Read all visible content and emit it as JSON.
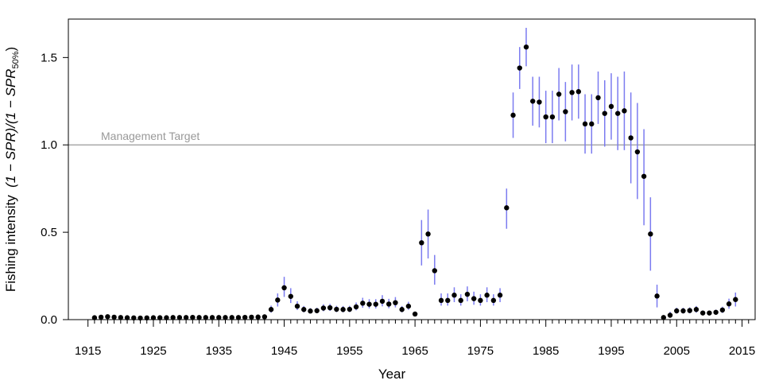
{
  "chart_data": {
    "type": "scatter",
    "title": "",
    "xlabel": "Year",
    "ylabel": {
      "prefix": "Fishing intensity  ",
      "expression": "(1 − SPR)/(1 − SPR",
      "subscript": "50%",
      "suffix": ")"
    },
    "xlim": [
      1912,
      2017
    ],
    "ylim": [
      0,
      1.72
    ],
    "x_ticks": [
      1915,
      1925,
      1935,
      1945,
      1955,
      1965,
      1975,
      1985,
      1995,
      2005,
      2015
    ],
    "x_minor_ticks": [
      1916,
      1917,
      1918,
      1919,
      1920,
      1921,
      1922,
      1923,
      1924,
      1926,
      1927,
      1928,
      1929,
      1930,
      1931,
      1932,
      1933,
      1934,
      1936,
      1937,
      1938,
      1939,
      1940,
      1941,
      1942,
      1943,
      1944,
      1946,
      1947,
      1948,
      1949,
      1950,
      1951,
      1952,
      1953,
      1954,
      1956,
      1957,
      1958,
      1959,
      1960,
      1961,
      1962,
      1963,
      1964,
      1966,
      1967,
      1968,
      1969,
      1970,
      1971,
      1972,
      1973,
      1974,
      1976,
      1977,
      1978,
      1979,
      1980,
      1981,
      1982,
      1983,
      1984,
      1986,
      1987,
      1988,
      1989,
      1990,
      1991,
      1992,
      1993,
      1994,
      1996,
      1997,
      1998,
      1999,
      2000,
      2001,
      2002,
      2003,
      2004,
      2006,
      2007,
      2008,
      2009,
      2010,
      2011,
      2012,
      2013,
      2014,
      2016
    ],
    "y_ticks": [
      0.0,
      0.5,
      1.0,
      1.5
    ],
    "y_tick_labels": [
      "0.0",
      "0.5",
      "1.0",
      "1.5"
    ],
    "grid": false,
    "reference_line": {
      "y": 1.0,
      "label": "Management Target",
      "color": "#999999"
    },
    "colors": {
      "point": "#000000",
      "interval": "#7b7bf0",
      "axis": "#000000"
    },
    "series": [
      {
        "x": [
          1916,
          1917,
          1918,
          1919,
          1920,
          1921,
          1922,
          1923,
          1924,
          1925,
          1926,
          1927,
          1928,
          1929,
          1930,
          1931,
          1932,
          1933,
          1934,
          1935,
          1936,
          1937,
          1938,
          1939,
          1940,
          1941,
          1942,
          1943,
          1944,
          1945,
          1946,
          1947,
          1948,
          1949,
          1950,
          1951,
          1952,
          1953,
          1954,
          1955,
          1956,
          1957,
          1958,
          1959,
          1960,
          1961,
          1962,
          1963,
          1964,
          1965,
          1966,
          1967,
          1968,
          1969,
          1970,
          1971,
          1972,
          1973,
          1974,
          1975,
          1976,
          1977,
          1978,
          1979,
          1980,
          1981,
          1982,
          1983,
          1984,
          1985,
          1986,
          1987,
          1988,
          1989,
          1990,
          1991,
          1992,
          1993,
          1994,
          1995,
          1996,
          1997,
          1998,
          1999,
          2000,
          2001,
          2002,
          2003,
          2004,
          2005,
          2006,
          2007,
          2008,
          2009,
          2010,
          2011,
          2012,
          2013,
          2014
        ],
        "y": [
          0.011,
          0.014,
          0.017,
          0.014,
          0.012,
          0.011,
          0.01,
          0.009,
          0.01,
          0.011,
          0.011,
          0.011,
          0.012,
          0.012,
          0.012,
          0.013,
          0.012,
          0.012,
          0.012,
          0.012,
          0.012,
          0.012,
          0.012,
          0.013,
          0.014,
          0.015,
          0.016,
          0.058,
          0.112,
          0.182,
          0.133,
          0.077,
          0.058,
          0.049,
          0.051,
          0.066,
          0.068,
          0.059,
          0.058,
          0.059,
          0.073,
          0.094,
          0.088,
          0.088,
          0.105,
          0.089,
          0.097,
          0.058,
          0.077,
          0.032,
          0.44,
          0.49,
          0.28,
          0.11,
          0.11,
          0.14,
          0.11,
          0.145,
          0.12,
          0.11,
          0.14,
          0.11,
          0.14,
          0.64,
          1.17,
          1.44,
          1.56,
          1.25,
          1.245,
          1.16,
          1.16,
          1.29,
          1.19,
          1.3,
          1.305,
          1.12,
          1.12,
          1.27,
          1.18,
          1.22,
          1.18,
          1.195,
          1.04,
          0.96,
          0.82,
          0.49,
          0.135,
          0.012,
          0.025,
          0.05,
          0.05,
          0.052,
          0.058,
          0.038,
          0.038,
          0.042,
          0.055,
          0.09,
          0.115
        ],
        "lower": [
          0.005,
          0.007,
          0.009,
          0.007,
          0.006,
          0.005,
          0.005,
          0.004,
          0.005,
          0.005,
          0.005,
          0.005,
          0.006,
          0.006,
          0.006,
          0.006,
          0.006,
          0.006,
          0.006,
          0.006,
          0.006,
          0.006,
          0.006,
          0.007,
          0.008,
          0.009,
          0.01,
          0.04,
          0.075,
          0.13,
          0.095,
          0.055,
          0.042,
          0.036,
          0.037,
          0.048,
          0.05,
          0.043,
          0.042,
          0.043,
          0.053,
          0.068,
          0.064,
          0.064,
          0.076,
          0.065,
          0.07,
          0.042,
          0.056,
          0.023,
          0.31,
          0.35,
          0.2,
          0.08,
          0.08,
          0.1,
          0.08,
          0.105,
          0.085,
          0.08,
          0.1,
          0.08,
          0.1,
          0.52,
          1.04,
          1.32,
          1.45,
          1.11,
          1.1,
          1.01,
          1.01,
          1.14,
          1.02,
          1.14,
          1.15,
          0.95,
          0.95,
          1.12,
          0.99,
          1.03,
          0.97,
          0.97,
          0.78,
          0.69,
          0.54,
          0.28,
          0.07,
          0.005,
          0.012,
          0.035,
          0.035,
          0.036,
          0.04,
          0.026,
          0.026,
          0.029,
          0.038,
          0.062,
          0.075
        ],
        "upper": [
          0.018,
          0.022,
          0.026,
          0.022,
          0.019,
          0.018,
          0.017,
          0.015,
          0.017,
          0.018,
          0.018,
          0.018,
          0.019,
          0.019,
          0.019,
          0.02,
          0.019,
          0.019,
          0.019,
          0.019,
          0.019,
          0.019,
          0.019,
          0.02,
          0.022,
          0.023,
          0.025,
          0.08,
          0.15,
          0.245,
          0.18,
          0.105,
          0.078,
          0.066,
          0.068,
          0.088,
          0.09,
          0.079,
          0.078,
          0.079,
          0.098,
          0.125,
          0.117,
          0.117,
          0.14,
          0.119,
          0.129,
          0.078,
          0.102,
          0.045,
          0.57,
          0.63,
          0.37,
          0.15,
          0.15,
          0.185,
          0.145,
          0.19,
          0.16,
          0.145,
          0.185,
          0.145,
          0.18,
          0.75,
          1.3,
          1.56,
          1.67,
          1.39,
          1.39,
          1.31,
          1.31,
          1.44,
          1.36,
          1.46,
          1.46,
          1.29,
          1.29,
          1.42,
          1.37,
          1.41,
          1.39,
          1.42,
          1.3,
          1.24,
          1.09,
          0.7,
          0.2,
          0.025,
          0.045,
          0.068,
          0.068,
          0.07,
          0.078,
          0.052,
          0.052,
          0.057,
          0.074,
          0.12,
          0.155
        ]
      }
    ]
  }
}
